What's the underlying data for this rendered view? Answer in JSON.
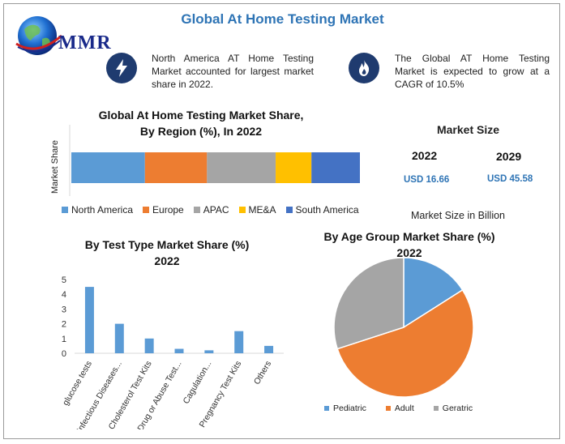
{
  "title": "Global At Home Testing Market",
  "logo": {
    "text": "MMR"
  },
  "info": [
    {
      "icon": "lightning-icon",
      "text": "North America AT Home Testing Market accounted for largest market share in 2022."
    },
    {
      "icon": "flame-icon",
      "text": "The Global AT Home Testing Market is expected to grow at a CAGR of 10.5%"
    }
  ],
  "market_size": {
    "title": "Market Size",
    "years": [
      "2022",
      "2029"
    ],
    "values": [
      "USD 16.66",
      "USD 45.58"
    ],
    "caption": "Market Size in Billion"
  },
  "colors": {
    "blue": "#5b9bd5",
    "orange": "#ed7d31",
    "gray": "#a5a5a5",
    "yellow": "#ffc000",
    "darkblue": "#4472c4",
    "title_blue": "#2e74b5"
  },
  "chart_data": [
    {
      "type": "bar",
      "orientation": "horizontal-stacked",
      "title": "Global At Home Testing Market Share, By Region (%), In 2022",
      "title_lines": [
        "Global At Home Testing Market Share,",
        "By Region (%), In 2022"
      ],
      "ylabel": "Market Share",
      "series": [
        {
          "name": "North America",
          "values": [
            25.5
          ],
          "color": "#5b9bd5"
        },
        {
          "name": "Europe",
          "values": [
            21.5
          ],
          "color": "#ed7d31"
        },
        {
          "name": "APAC",
          "values": [
            23.8
          ],
          "color": "#a5a5a5"
        },
        {
          "name": "ME&A",
          "values": [
            12.4
          ],
          "color": "#ffc000"
        },
        {
          "name": "South America",
          "values": [
            16.8
          ],
          "color": "#4472c4"
        }
      ],
      "legend": "bottom"
    },
    {
      "type": "bar",
      "title": "By Test Type Market Share (%) 2022",
      "title_lines": [
        "By Test Type Market Share (%)",
        "2022"
      ],
      "categories": [
        "glucose tests",
        "Infectious Diseases...",
        "Cholesterol Test Kits",
        "Drug or Abuse Test...",
        "Cagulation...",
        "Pregnancy Test Kits",
        "Others"
      ],
      "values": [
        4.5,
        2.0,
        1.0,
        0.3,
        0.2,
        1.5,
        0.5
      ],
      "yticks": [
        "0",
        "1",
        "2",
        "3",
        "4",
        "5"
      ],
      "ylim": [
        0,
        5
      ],
      "color": "#5b9bd5"
    },
    {
      "type": "pie",
      "title": "By Age Group Market Share (%) 2022",
      "title_lines": [
        "By Age Group Market Share (%)",
        "2022"
      ],
      "labels": [
        "Pediatric",
        "Adult",
        "Geratric"
      ],
      "values": [
        16,
        54,
        30
      ],
      "colors": [
        "#5b9bd5",
        "#ed7d31",
        "#a5a5a5"
      ],
      "legend": "bottom"
    }
  ]
}
